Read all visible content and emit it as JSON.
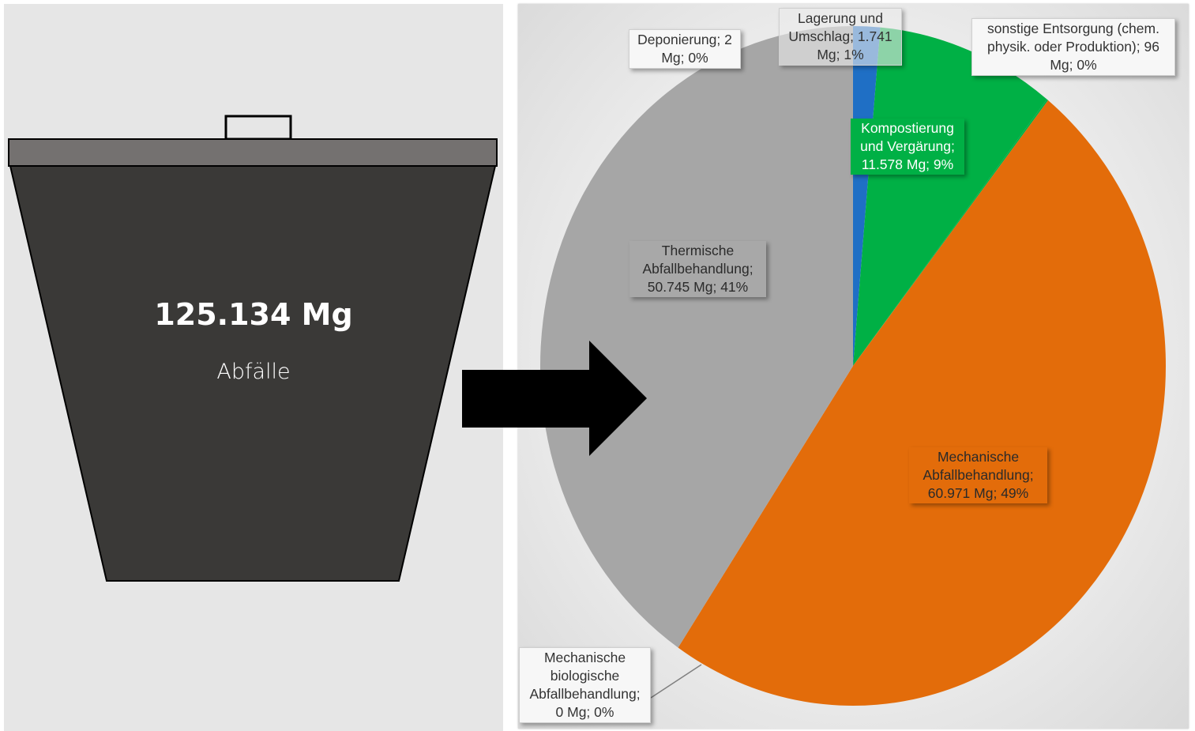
{
  "bin": {
    "value": "125.134 Mg",
    "label": "Abfälle"
  },
  "colors": {
    "bin_body": "#3a3937",
    "bin_lid": "#747170",
    "arrow": "#000000",
    "thermal": "#a6a6a6",
    "landfill": "#a6a6a6",
    "storage": "#1f6fc5",
    "composting": "#00b045",
    "other": "#00b045",
    "mechanical": "#e36c0a",
    "mbt": "#a6a6a6"
  },
  "chart_data": {
    "type": "pie",
    "title": "",
    "slices": [
      {
        "name": "Lagerung und Umschlag",
        "value": 1741,
        "percent": 1,
        "color": "#1f6fc5",
        "label": "Lagerung und Umschlag; 1.741 Mg; 1%"
      },
      {
        "name": "Kompostierung und Vergärung",
        "value": 11578,
        "percent": 9,
        "color": "#00b045",
        "label": "Kompostierung und Vergärung; 11.578 Mg; 9%"
      },
      {
        "name": "sonstige Entsorgung (chem. physik. oder Produktion)",
        "value": 96,
        "percent": 0,
        "color": "#00b045",
        "label": "sonstige Entsorgung (chem. physik. oder Produktion); 96 Mg; 0%"
      },
      {
        "name": "Mechanische Abfallbehandlung",
        "value": 60971,
        "percent": 49,
        "color": "#e36c0a",
        "label": "Mechanische Abfallbehandlung; 60.971 Mg; 49%"
      },
      {
        "name": "Mechanische biologische Abfallbehandlung",
        "value": 0,
        "percent": 0,
        "color": "#a6a6a6",
        "label": "Mechanische biologische Abfallbehandlung; 0 Mg; 0%"
      },
      {
        "name": "Thermische Abfallbehandlung",
        "value": 50745,
        "percent": 41,
        "color": "#a6a6a6",
        "label": "Thermische Abfallbehandlung; 50.745 Mg; 41%"
      },
      {
        "name": "Deponierung",
        "value": 2,
        "percent": 0,
        "color": "#a6a6a6",
        "label": "Deponierung; 2 Mg; 0%"
      }
    ]
  },
  "labels": {
    "storage": [
      "Lagerung und",
      "Umschlag; 1.741",
      "Mg; 1%"
    ],
    "other": [
      "sonstige Entsorgung (chem.",
      "physik. oder Produktion); 96",
      "Mg; 0%"
    ],
    "landfill": [
      "Deponierung; 2",
      "Mg; 0%"
    ],
    "composting": [
      "Kompostierung",
      "und Vergärung;",
      "11.578 Mg; 9%"
    ],
    "thermal": [
      "Thermische",
      "Abfallbehandlung;",
      "50.745 Mg; 41%"
    ],
    "mechanical": [
      "Mechanische",
      "Abfallbehandlung;",
      "60.971 Mg; 49%"
    ],
    "mbt": [
      "Mechanische",
      "biologische",
      "Abfallbehandlung;",
      "0 Mg; 0%"
    ]
  }
}
